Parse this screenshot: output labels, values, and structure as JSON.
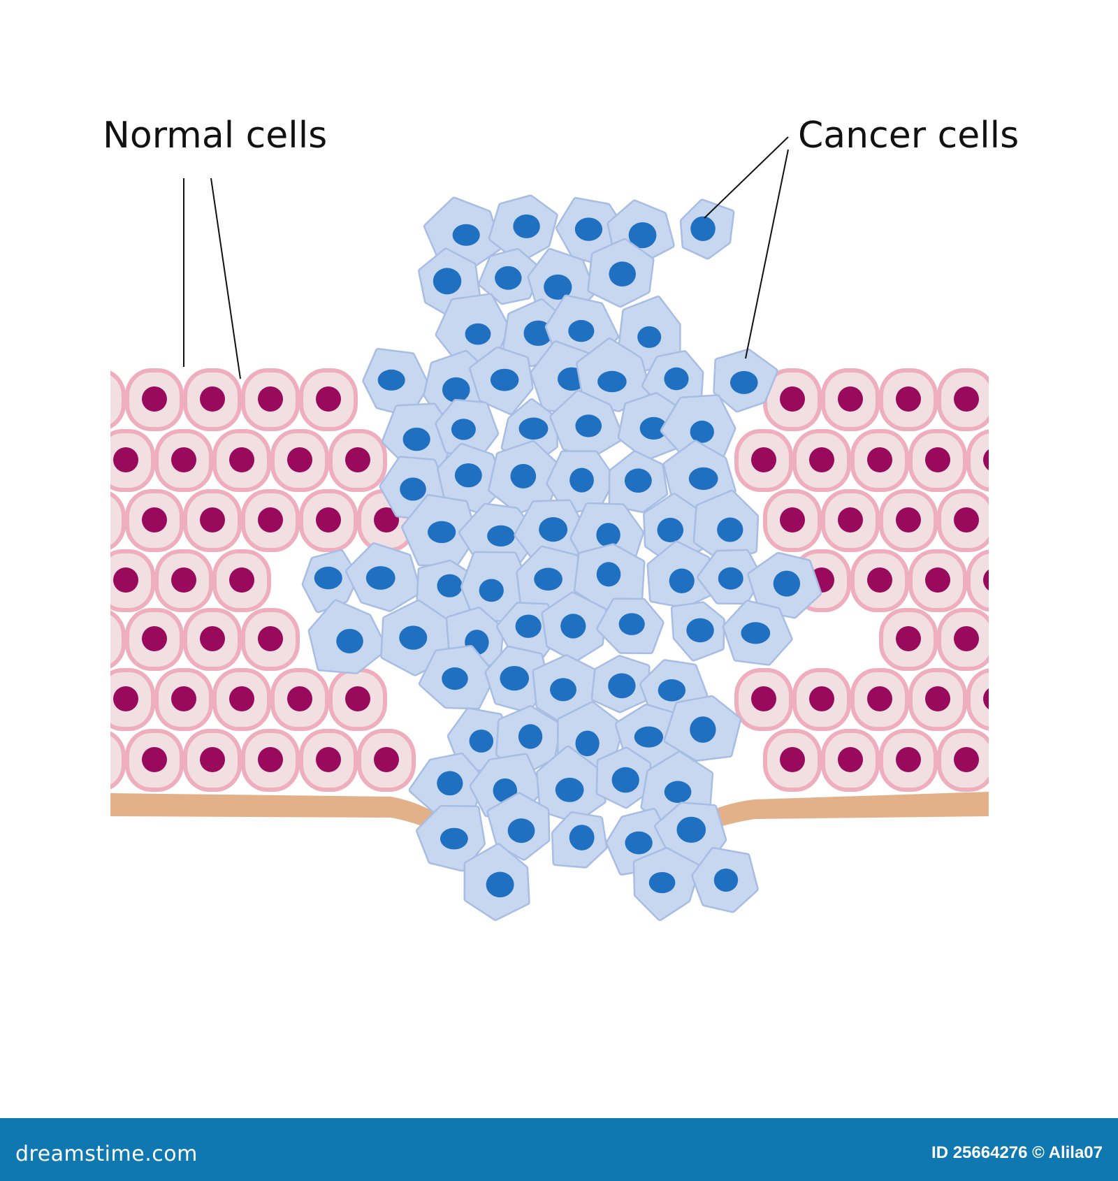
{
  "labels": {
    "normal": "Normal cells",
    "cancer": "Cancer cells"
  },
  "footer": {
    "logo": "dreamstime.com",
    "credit": "ID 25664276 © Alila07"
  },
  "colors": {
    "normal_cell_fill": "#f2dfe2",
    "normal_cell_border": "#eeaebd",
    "normal_nucleus": "#990a5c",
    "cancer_cell_fill": "#c7d7f0",
    "cancer_cell_border": "#a7bde3",
    "cancer_nucleus": "#1f70c1",
    "basement_membrane": "#e2b18a",
    "footer_bg": "#0f78b0"
  }
}
